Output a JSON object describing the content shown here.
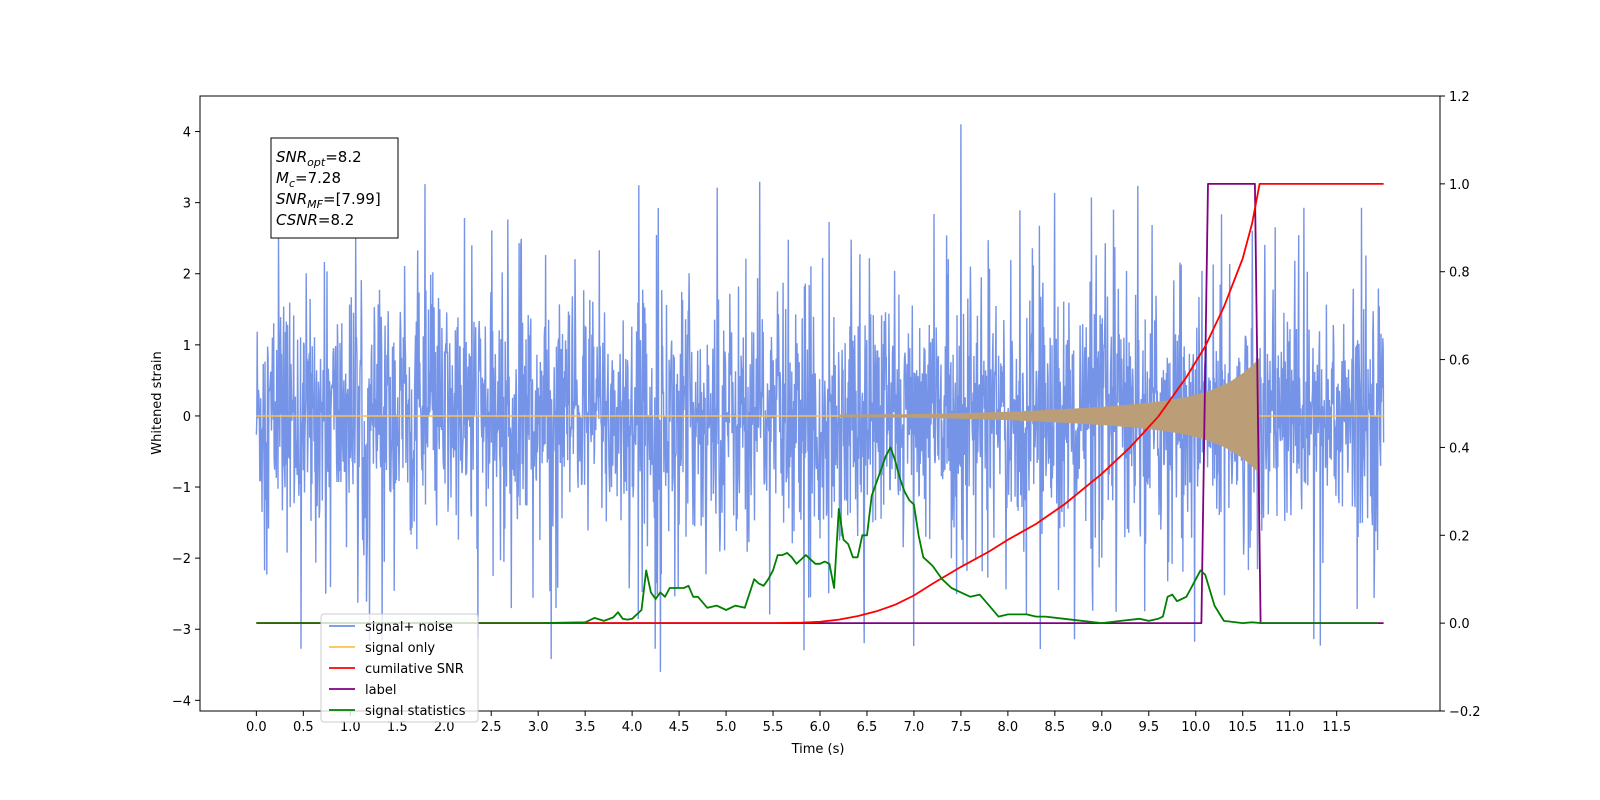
{
  "chart_data": {
    "type": "line",
    "xlabel": "Time (s)",
    "ylabel_left": "Whitened strain",
    "ylabel_right": "",
    "xlim": [
      -0.6,
      12.6
    ],
    "ylim_left": [
      -4.15,
      4.5
    ],
    "ylim_right": [
      -0.2,
      1.2
    ],
    "x_ticks": [
      "0.0",
      "0.5",
      "1.0",
      "1.5",
      "2.0",
      "2.5",
      "3.0",
      "3.5",
      "4.0",
      "4.5",
      "5.0",
      "5.5",
      "6.0",
      "6.5",
      "7.0",
      "7.5",
      "8.0",
      "8.5",
      "9.0",
      "9.5",
      "10.0",
      "10.5",
      "11.0",
      "11.5"
    ],
    "y_ticks_left": [
      "4",
      "3",
      "2",
      "1",
      "0",
      "−1",
      "−2",
      "−3",
      "−4"
    ],
    "y_ticks_right": [
      "1.2",
      "1.0",
      "0.8",
      "0.6",
      "0.4",
      "0.2",
      "0.0",
      "−0.2"
    ],
    "info_box": [
      {
        "main": "SNR",
        "sub": "opt",
        "value": "=8.2"
      },
      {
        "main": "M",
        "sub": "c",
        "value": "=7.28"
      },
      {
        "main": "SNR",
        "sub": "MF",
        "value": "=[7.99]"
      },
      {
        "main": "CSNR",
        "sub": "",
        "value": "=8.2"
      }
    ],
    "legend": {
      "placement": "lower-left",
      "entries": [
        {
          "label": "signal+ noise",
          "color": "#6f8ee6"
        },
        {
          "label": "signal only",
          "color": "#ffc04d"
        },
        {
          "label": "cumilative SNR",
          "color": "#ff0000"
        },
        {
          "label": "label",
          "color": "#800080"
        },
        {
          "label": "signal statistics",
          "color": "#008000"
        }
      ]
    },
    "colors": {
      "noise": "#6f8ee6",
      "signal": "#ffc04d",
      "signal_overlap": "#bb9e78",
      "csnr": "#ff0000",
      "label": "#800080",
      "stats": "#008000"
    },
    "series": [
      {
        "name": "signal+ noise",
        "axis": "left",
        "description_values": "noise band approx ±1.8 std envelope, spikes up to 4.1 near 7.5s, down to -3.75 near 4.3s",
        "x_range": [
          0.0,
          12.0
        ],
        "typical_max": 2.0,
        "typical_min": -2.0,
        "peak_max": [
          7.5,
          4.1
        ],
        "peak_min": [
          4.3,
          -3.75
        ]
      },
      {
        "name": "signal only",
        "axis": "left",
        "x_range": [
          0.0,
          12.0
        ],
        "chirp_start": 6.2,
        "merger_time": 10.68,
        "max_amplitude": 0.9
      },
      {
        "name": "cumilative SNR",
        "axis": "right",
        "x": [
          0.0,
          5.5,
          5.8,
          6.0,
          6.2,
          6.4,
          6.6,
          6.8,
          7.0,
          7.2,
          7.5,
          7.8,
          8.0,
          8.3,
          8.6,
          9.0,
          9.3,
          9.6,
          9.9,
          10.1,
          10.3,
          10.5,
          10.6,
          10.68,
          12.0
        ],
        "y": [
          0.0,
          0.0,
          0.001,
          0.003,
          0.008,
          0.016,
          0.027,
          0.042,
          0.063,
          0.09,
          0.128,
          0.163,
          0.19,
          0.226,
          0.27,
          0.34,
          0.4,
          0.47,
          0.56,
          0.63,
          0.72,
          0.83,
          0.91,
          1.0,
          1.0
        ]
      },
      {
        "name": "label",
        "axis": "right",
        "x": [
          0.0,
          10.06,
          10.13,
          10.63,
          10.69,
          12.0
        ],
        "y": [
          0.0,
          0.0,
          1.0,
          1.0,
          0.0,
          0.0
        ],
        "x_end": 10.69
      },
      {
        "name": "signal statistics",
        "axis": "right",
        "x": [
          0.0,
          3.0,
          3.5,
          3.6,
          3.7,
          3.8,
          3.85,
          3.9,
          3.95,
          4.0,
          4.1,
          4.15,
          4.2,
          4.25,
          4.3,
          4.35,
          4.4,
          4.5,
          4.55,
          4.6,
          4.65,
          4.7,
          4.8,
          4.9,
          5.0,
          5.1,
          5.2,
          5.3,
          5.35,
          5.4,
          5.45,
          5.5,
          5.55,
          5.6,
          5.65,
          5.7,
          5.75,
          5.8,
          5.85,
          5.9,
          5.95,
          6.0,
          6.05,
          6.1,
          6.15,
          6.2,
          6.25,
          6.3,
          6.35,
          6.4,
          6.45,
          6.5,
          6.55,
          6.6,
          6.65,
          6.7,
          6.75,
          6.8,
          6.85,
          6.9,
          6.95,
          7.0,
          7.05,
          7.1,
          7.15,
          7.2,
          7.3,
          7.4,
          7.5,
          7.6,
          7.7,
          7.8,
          7.9,
          8.0,
          8.1,
          8.2,
          8.3,
          8.4,
          8.6,
          9.0,
          9.2,
          9.4,
          9.5,
          9.6,
          9.65,
          9.7,
          9.75,
          9.8,
          9.85,
          9.9,
          9.95,
          10.0,
          10.05,
          10.1,
          10.2,
          10.3,
          10.5,
          10.6,
          10.7,
          11.0,
          11.5,
          11.94
        ],
        "y": [
          0.0,
          0.0,
          0.002,
          0.012,
          0.005,
          0.013,
          0.025,
          0.01,
          0.008,
          0.01,
          0.03,
          0.12,
          0.07,
          0.055,
          0.07,
          0.06,
          0.08,
          0.08,
          0.08,
          0.085,
          0.06,
          0.06,
          0.035,
          0.04,
          0.03,
          0.04,
          0.035,
          0.1,
          0.09,
          0.085,
          0.1,
          0.12,
          0.155,
          0.155,
          0.16,
          0.15,
          0.135,
          0.145,
          0.155,
          0.145,
          0.135,
          0.135,
          0.14,
          0.135,
          0.08,
          0.26,
          0.19,
          0.18,
          0.15,
          0.15,
          0.2,
          0.2,
          0.29,
          0.32,
          0.35,
          0.38,
          0.4,
          0.37,
          0.33,
          0.3,
          0.28,
          0.27,
          0.2,
          0.15,
          0.14,
          0.13,
          0.1,
          0.08,
          0.07,
          0.06,
          0.065,
          0.04,
          0.015,
          0.02,
          0.02,
          0.02,
          0.015,
          0.015,
          0.01,
          0.0,
          0.005,
          0.01,
          0.005,
          0.01,
          0.015,
          0.06,
          0.065,
          0.05,
          0.055,
          0.06,
          0.08,
          0.1,
          0.12,
          0.11,
          0.04,
          0.005,
          0.0,
          0.002,
          0.0,
          0.0,
          0.0,
          0.0
        ]
      }
    ]
  }
}
